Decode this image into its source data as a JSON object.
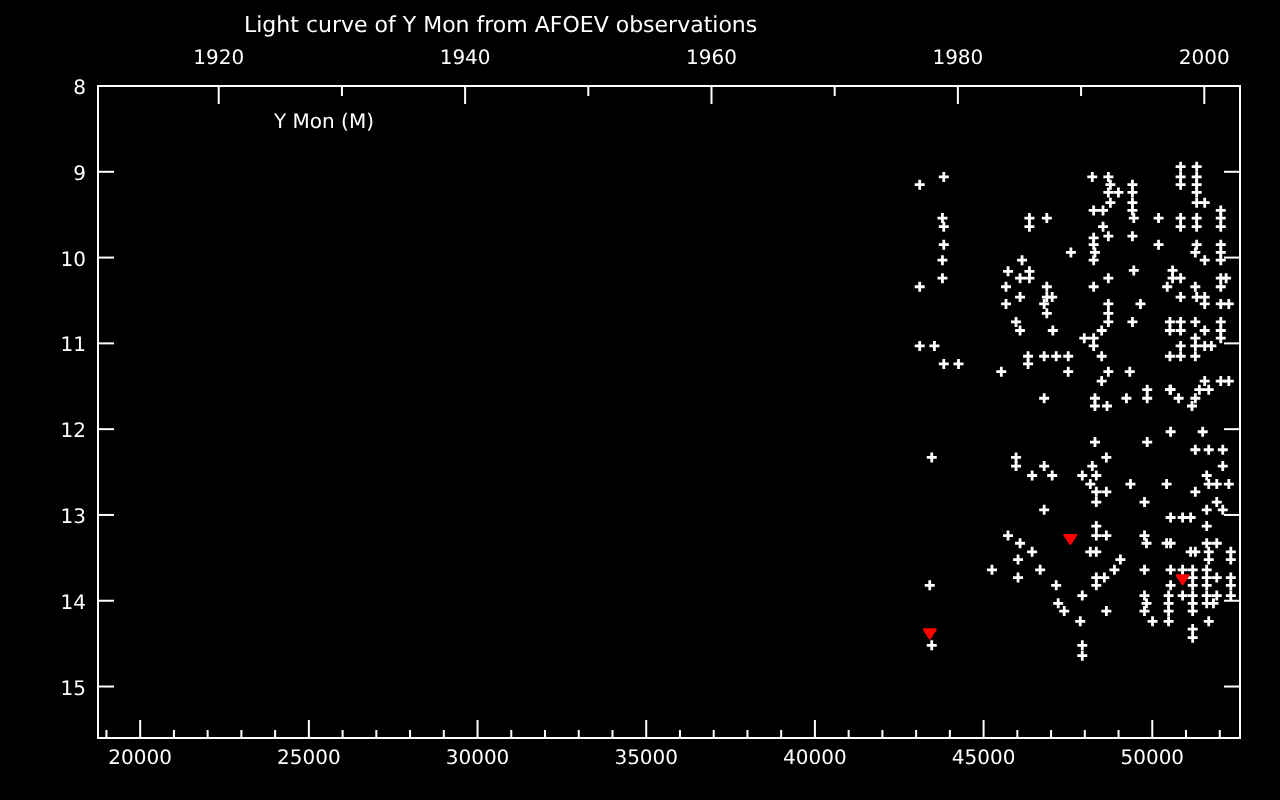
{
  "chart_data": {
    "type": "scatter",
    "title": "Light curve of Y Mon from AFOEV observations",
    "annotations": [
      "Y Mon (M)"
    ],
    "xlim": [
      18750,
      52600
    ],
    "xticks": [
      {
        "value": 19000,
        "label": null
      },
      20000,
      {
        "value": 21000,
        "label": null
      },
      {
        "value": 22000,
        "label": null
      },
      {
        "value": 23000,
        "label": null
      },
      {
        "value": 24000,
        "label": null
      },
      25000,
      {
        "value": 26000,
        "label": null
      },
      {
        "value": 27000,
        "label": null
      },
      {
        "value": 28000,
        "label": null
      },
      {
        "value": 29000,
        "label": null
      },
      30000,
      {
        "value": 31000,
        "label": null
      },
      {
        "value": 32000,
        "label": null
      },
      {
        "value": 33000,
        "label": null
      },
      {
        "value": 34000,
        "label": null
      },
      35000,
      {
        "value": 36000,
        "label": null
      },
      {
        "value": 37000,
        "label": null
      },
      {
        "value": 38000,
        "label": null
      },
      {
        "value": 39000,
        "label": null
      },
      40000,
      {
        "value": 41000,
        "label": null
      },
      {
        "value": 42000,
        "label": null
      },
      {
        "value": 43000,
        "label": null
      },
      {
        "value": 44000,
        "label": null
      },
      45000,
      {
        "value": 46000,
        "label": null
      },
      {
        "value": 47000,
        "label": null
      },
      {
        "value": 48000,
        "label": null
      },
      {
        "value": 49000,
        "label": null
      },
      50000,
      {
        "value": 51000,
        "label": null
      },
      {
        "value": 52000,
        "label": null
      }
    ],
    "x2lim": [
      1910.2,
      2002.9
    ],
    "x2ticks": [
      1920,
      {
        "value": 1930,
        "label": null
      },
      1940,
      {
        "value": 1950,
        "label": null
      },
      1960,
      {
        "value": 1970,
        "label": null
      },
      1980,
      {
        "value": 1990,
        "label": null
      },
      2000
    ],
    "ylim": [
      15.6,
      8
    ],
    "yticks": [
      8,
      9,
      10,
      11,
      12,
      13,
      14,
      15
    ],
    "series": [
      {
        "color": "#ffffff",
        "marker": "cross",
        "x": [
          43106,
          43820,
          43780,
          43820,
          43820,
          43780,
          43780,
          43106,
          43106,
          43542,
          43820,
          44256,
          45724,
          46358,
          45664,
          46081,
          46358,
          46140,
          46874,
          46081,
          46874,
          47033,
          45664,
          46795,
          46874,
          45962,
          46081,
          47052,
          46358,
          46358,
          46874,
          47588,
          47984,
          48262,
          48262,
          48262,
          48262,
          48301,
          48262,
          48262,
          48262,
          48540,
          48540,
          48222,
          48698,
          48758,
          48698,
          48996,
          48758,
          48698,
          48698,
          48698,
          48698,
          48698,
          48500,
          49412,
          49412,
          49412,
          49412,
          49452,
          49412,
          49452,
          49650,
          49412,
          50186,
          50186,
          50840,
          50840,
          50840,
          50840,
          50840,
          51316,
          51316,
          51316,
          51316,
          51316,
          51554,
          52030,
          52030,
          52030,
          51316,
          51316,
          51316,
          51276,
          51554,
          52030,
          52030,
          52030,
          50602,
          50602,
          50840,
          50443,
          50840,
          51316,
          51554,
          51554,
          52030,
          52268,
          51276,
          52030,
          52188,
          52030,
          50523,
          50840,
          50523,
          50840,
          51276,
          51554,
          52030,
          52030,
          52030,
          51276,
          51276,
          51554,
          51752,
          50840,
          50523,
          50840,
          51276,
          51554,
          52030,
          52268,
          50523,
          51395,
          51673,
          45525,
          46319,
          46795,
          47152,
          47508,
          47508,
          46319,
          48500,
          48698,
          49333,
          48500,
          46795,
          48301,
          48301,
          48659,
          49234,
          49849,
          49849,
          50543,
          50780,
          51177,
          51276,
          50543,
          51494,
          48301,
          49849,
          51276,
          51673,
          52089,
          52089,
          51613,
          51673,
          51911,
          52268,
          51276,
          51911,
          52089,
          51613,
          51613,
          50543,
          50899,
          51137,
          43463,
          45962,
          45962,
          46795,
          46438,
          47033,
          47925,
          48222,
          48341,
          48639,
          48163,
          48341,
          48639,
          48341,
          49353,
          50424,
          49769,
          46795,
          48341,
          48341,
          48639,
          49769,
          49829,
          50424,
          50543,
          51613,
          51911,
          52327,
          52327,
          51673,
          51673,
          51137,
          51276,
          45724,
          46081,
          46438,
          46021,
          45248,
          46676,
          46021,
          43404,
          47152,
          47925,
          47211,
          47389,
          47865,
          47925,
          47925,
          48639,
          48163,
          48341,
          49055,
          48877,
          48341,
          48579,
          48341,
          49769,
          50543,
          50899,
          51197,
          51613,
          51911,
          52327,
          52327,
          52327,
          51613,
          50899,
          51197,
          51613,
          51197,
          50543,
          50899,
          51197,
          51613,
          51911,
          50483,
          49769,
          49829,
          50483,
          51197,
          51613,
          51812,
          49769,
          50483,
          51197,
          50483,
          50007,
          51673,
          51197,
          51197,
          43463
        ],
        "values": [
          9.15,
          9.06,
          9.54,
          9.64,
          9.85,
          10.03,
          10.24,
          10.34,
          11.03,
          11.03,
          11.24,
          11.24,
          10.16,
          10.16,
          10.34,
          10.24,
          10.24,
          10.03,
          10.34,
          10.46,
          10.46,
          10.46,
          10.54,
          10.54,
          10.65,
          10.75,
          10.85,
          10.85,
          9.54,
          9.64,
          9.54,
          9.94,
          10.94,
          10.94,
          11.03,
          9.77,
          9.85,
          9.94,
          10.03,
          10.34,
          9.45,
          9.45,
          9.64,
          9.06,
          9.06,
          9.15,
          9.24,
          9.24,
          9.36,
          9.75,
          10.24,
          10.54,
          10.65,
          10.75,
          10.85,
          9.15,
          9.24,
          9.36,
          9.45,
          9.54,
          9.75,
          10.15,
          10.54,
          10.75,
          9.54,
          9.85,
          8.94,
          9.06,
          9.15,
          9.54,
          9.64,
          8.94,
          9.06,
          9.15,
          9.24,
          9.36,
          9.36,
          9.45,
          9.54,
          9.64,
          9.54,
          9.64,
          9.85,
          9.94,
          10.03,
          9.85,
          9.94,
          10.03,
          10.15,
          10.24,
          10.24,
          10.34,
          10.46,
          10.46,
          10.46,
          10.54,
          10.54,
          10.54,
          10.34,
          10.24,
          10.24,
          10.34,
          10.75,
          10.75,
          10.85,
          10.85,
          10.75,
          10.85,
          10.75,
          10.85,
          10.94,
          10.94,
          11.03,
          11.03,
          11.03,
          11.03,
          11.15,
          11.15,
          11.15,
          11.44,
          11.44,
          11.44,
          11.54,
          11.54,
          11.54,
          11.33,
          11.15,
          11.15,
          11.15,
          11.15,
          11.33,
          11.24,
          11.44,
          11.33,
          11.33,
          11.15,
          11.64,
          11.64,
          11.73,
          11.73,
          11.64,
          11.54,
          11.64,
          11.54,
          11.64,
          11.73,
          11.64,
          12.03,
          12.03,
          12.15,
          12.15,
          12.24,
          12.24,
          12.24,
          12.43,
          12.54,
          12.64,
          12.64,
          12.64,
          12.73,
          12.85,
          12.94,
          12.94,
          13.13,
          13.03,
          13.03,
          13.03,
          12.33,
          12.33,
          12.43,
          12.43,
          12.54,
          12.54,
          12.54,
          12.43,
          12.54,
          12.33,
          12.64,
          12.73,
          12.73,
          12.85,
          12.64,
          12.64,
          12.85,
          12.94,
          13.13,
          13.24,
          13.24,
          13.24,
          13.33,
          13.33,
          13.33,
          13.33,
          13.33,
          13.43,
          13.52,
          13.43,
          13.52,
          13.43,
          13.43,
          13.24,
          13.33,
          13.43,
          13.52,
          13.64,
          13.64,
          13.73,
          13.82,
          13.82,
          13.94,
          14.03,
          14.12,
          14.24,
          14.52,
          14.64,
          14.12,
          13.43,
          13.43,
          13.52,
          13.64,
          13.73,
          13.73,
          13.82,
          13.64,
          13.64,
          13.64,
          13.64,
          13.64,
          13.73,
          13.73,
          13.82,
          13.94,
          13.73,
          13.73,
          13.73,
          13.82,
          13.82,
          13.82,
          13.94,
          13.94,
          13.94,
          13.94,
          13.94,
          13.94,
          14.03,
          14.03,
          14.03,
          14.03,
          14.03,
          14.12,
          14.12,
          14.12,
          14.24,
          14.24,
          14.24,
          14.33,
          14.43,
          14.52
        ]
      },
      {
        "color": "#ff0000",
        "marker": "triangle",
        "x": [
          43404,
          47568,
          50899
        ],
        "values": [
          14.38,
          13.28,
          13.75
        ]
      }
    ]
  }
}
